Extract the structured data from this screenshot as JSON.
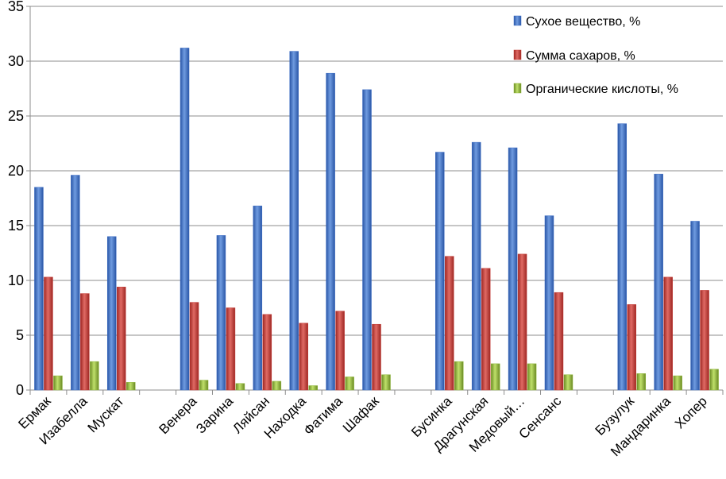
{
  "chart_data": {
    "type": "bar",
    "title": "",
    "xlabel": "",
    "ylabel": "",
    "ylim": [
      0,
      35
    ],
    "yticks": [
      0,
      5,
      10,
      15,
      20,
      25,
      30,
      35
    ],
    "legend_position": "top-right",
    "categories": [
      "Ермак",
      "Изабелла",
      "Мускат",
      "",
      "Венера",
      "Зарина",
      "Ляйсан",
      "Находка",
      "Фатима",
      "Шафак",
      "",
      "Бусинка",
      "Драгунская",
      "Медовый…",
      "Сенсанс",
      "",
      "Бузулук",
      "Мандаринка",
      "Хопер"
    ],
    "series": [
      {
        "name": "Сухое вещество, %",
        "color": "#3b6cc4",
        "values": [
          18.5,
          19.6,
          14.0,
          null,
          31.2,
          14.1,
          16.8,
          30.9,
          28.9,
          27.4,
          null,
          21.7,
          22.6,
          22.1,
          15.9,
          null,
          24.3,
          19.7,
          15.4
        ]
      },
      {
        "name": "Сумма сахаров, %",
        "color": "#c43a35",
        "values": [
          10.3,
          8.8,
          9.4,
          null,
          8.0,
          7.5,
          6.9,
          6.1,
          7.2,
          6.0,
          null,
          12.2,
          11.1,
          12.4,
          8.9,
          null,
          7.8,
          10.3,
          9.1
        ]
      },
      {
        "name": "Органические кислоты, %",
        "color": "#8fb63a",
        "values": [
          1.3,
          2.6,
          0.7,
          null,
          0.9,
          0.6,
          0.8,
          0.4,
          1.2,
          1.4,
          null,
          2.6,
          2.4,
          2.4,
          1.4,
          null,
          1.5,
          1.3,
          1.9
        ]
      }
    ]
  }
}
